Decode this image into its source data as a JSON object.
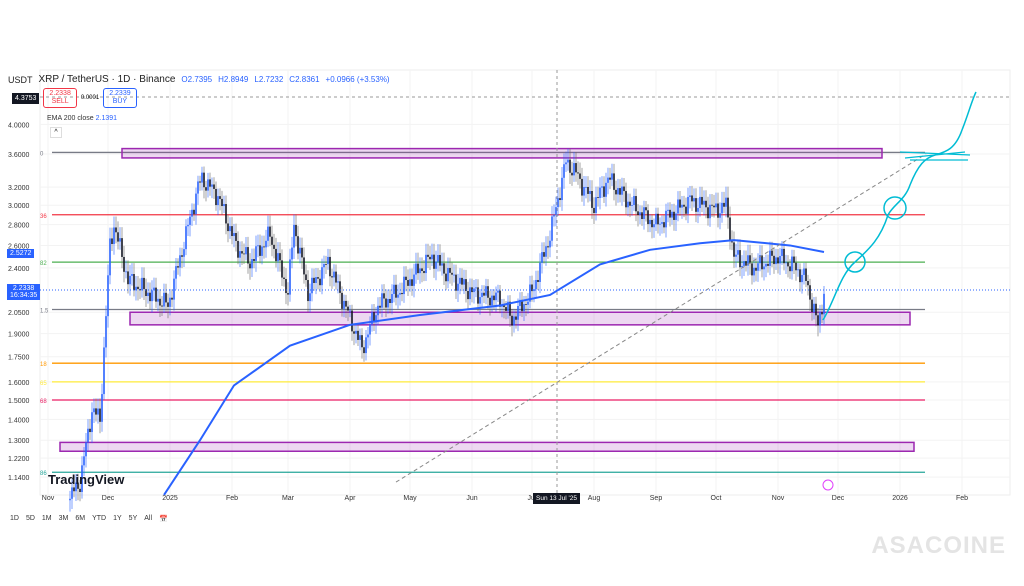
{
  "header": {
    "currency": "USDT",
    "symbol": "XRP / TetherUS · 1D · Binance",
    "open": "O2.7395",
    "high": "H2.8949",
    "low": "L2.7232",
    "close": "C2.8361",
    "change": "+0.0966 (+3.53%)"
  },
  "trade": {
    "top_price": "4.3753",
    "sell_price": "2.2338",
    "sell_label": "SELL",
    "spread": "0.0001",
    "buy_price": "2.2339",
    "buy_label": "BUY"
  },
  "indicator": {
    "label": "EMA 200 close",
    "value": "2.1391"
  },
  "price_tags": {
    "ema": "2.5272",
    "last": "2.2338",
    "countdown": "16:34:35"
  },
  "crosshair_date": "Sun 13 Jul '25",
  "ranges": [
    "1D",
    "5D",
    "1M",
    "3M",
    "6M",
    "YTD",
    "1Y",
    "5Y",
    "All"
  ],
  "branding": {
    "tradingview": "TradingView",
    "watermark": "ASACOINE"
  },
  "colors": {
    "up": "#2962ff",
    "down": "#131722",
    "ema": "#2962ff",
    "box": "#9c27b0",
    "projection": "#00bcd4"
  },
  "chart_data": {
    "type": "line",
    "title": "XRP / TetherUS · 1D · Binance",
    "yscale": "log",
    "ylim": [
      1.1,
      4.4
    ],
    "yticks": [
      "4.0000",
      "3.6000",
      "3.2000",
      "3.0000",
      "2.8000",
      "2.6000",
      "2.4000",
      "2.0500",
      "1.9000",
      "1.7500",
      "1.6000",
      "1.5000",
      "1.4000",
      "1.3000",
      "1.2200",
      "1.1400"
    ],
    "ytick_values": [
      4.0,
      3.6,
      3.2,
      3.0,
      2.8,
      2.6,
      2.4,
      2.05,
      1.9,
      1.75,
      1.6,
      1.5,
      1.4,
      1.3,
      1.22,
      1.14
    ],
    "xticks": [
      "Nov",
      "Dec",
      "2025",
      "Feb",
      "Mar",
      "Apr",
      "May",
      "Jun",
      "Jul",
      "Aug",
      "Sep",
      "Oct",
      "Nov",
      "Dec",
      "2026",
      "Feb"
    ],
    "xtick_days": [
      0,
      30,
      61,
      92,
      120,
      151,
      181,
      212,
      242,
      273,
      304,
      334,
      365,
      395,
      426,
      457
    ],
    "price_closes": [
      [
        10,
        1.05
      ],
      [
        16,
        1.12
      ],
      [
        22,
        1.45
      ],
      [
        26,
        1.4
      ],
      [
        31,
        2.6
      ],
      [
        33,
        2.8
      ],
      [
        40,
        2.3
      ],
      [
        50,
        2.2
      ],
      [
        60,
        2.1
      ],
      [
        75,
        3.2
      ],
      [
        77,
        3.3
      ],
      [
        85,
        3.1
      ],
      [
        94,
        2.6
      ],
      [
        101,
        2.45
      ],
      [
        111,
        2.7
      ],
      [
        120,
        2.2
      ],
      [
        123,
        2.8
      ],
      [
        130,
        2.2
      ],
      [
        140,
        2.45
      ],
      [
        157,
        1.8
      ],
      [
        165,
        2.1
      ],
      [
        175,
        2.2
      ],
      [
        192,
        2.5
      ],
      [
        200,
        2.35
      ],
      [
        212,
        2.2
      ],
      [
        226,
        2.15
      ],
      [
        232,
        2.0
      ],
      [
        242,
        2.2
      ],
      [
        251,
        2.7
      ],
      [
        259,
        3.5
      ],
      [
        263,
        3.4
      ],
      [
        273,
        3.0
      ],
      [
        280,
        3.3
      ],
      [
        292,
        3.0
      ],
      [
        304,
        2.8
      ],
      [
        321,
        3.05
      ],
      [
        334,
        2.95
      ],
      [
        339,
        3.0
      ],
      [
        343,
        2.5
      ],
      [
        353,
        2.4
      ],
      [
        365,
        2.5
      ],
      [
        374,
        2.4
      ],
      [
        379,
        2.3
      ],
      [
        385,
        1.95
      ],
      [
        388,
        2.2
      ]
    ],
    "ema200": [
      [
        58,
        1.07
      ],
      [
        76,
        1.3
      ],
      [
        93,
        1.58
      ],
      [
        121,
        1.82
      ],
      [
        151,
        1.96
      ],
      [
        186,
        2.03
      ],
      [
        226,
        2.1
      ],
      [
        251,
        2.18
      ],
      [
        276,
        2.43
      ],
      [
        301,
        2.56
      ],
      [
        326,
        2.62
      ],
      [
        343,
        2.65
      ],
      [
        371,
        2.6
      ],
      [
        388,
        2.54
      ]
    ],
    "fib_levels": [
      {
        "label": "0",
        "price": 3.62,
        "color": "#787b86"
      },
      {
        "label": "36",
        "price": 2.9,
        "color": "#f23645"
      },
      {
        "label": "82",
        "price": 2.45,
        "color": "#4caf50"
      },
      {
        "label": "1.5",
        "price": 2.07,
        "color": "#787b86"
      },
      {
        "label": "18",
        "price": 1.71,
        "color": "#ff9800"
      },
      {
        "label": "65",
        "price": 1.6,
        "color": "#ffeb3b"
      },
      {
        "label": "68",
        "price": 1.5,
        "color": "#e91e63"
      },
      {
        "label": "86",
        "price": 1.16,
        "color": "#26a69a"
      }
    ],
    "zones": [
      {
        "from_day": 37,
        "to_day": 417,
        "low": 3.55,
        "high": 3.67
      },
      {
        "from_day": 41,
        "to_day": 431,
        "low": 1.96,
        "high": 2.05
      },
      {
        "from_day": 6,
        "to_day": 433,
        "low": 1.25,
        "high": 1.29
      }
    ],
    "trendline": [
      [
        174,
        1.12
      ],
      [
        439,
        3.6
      ]
    ]
  }
}
